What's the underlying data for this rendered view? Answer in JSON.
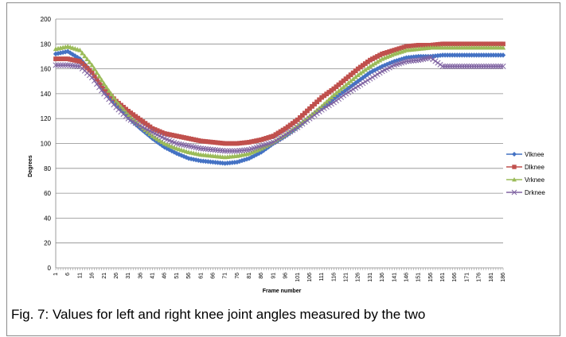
{
  "chart_data": {
    "type": "line",
    "title": "",
    "xlabel": "Frame number",
    "ylabel": "Degrees",
    "ylim": [
      0,
      200
    ],
    "yticks": [
      0,
      20,
      40,
      60,
      80,
      100,
      120,
      140,
      160,
      180,
      200
    ],
    "grid": "horizontal",
    "legend_position": "right",
    "x": [
      1,
      6,
      11,
      16,
      21,
      26,
      31,
      36,
      41,
      46,
      51,
      56,
      61,
      66,
      71,
      76,
      81,
      86,
      91,
      96,
      101,
      106,
      111,
      116,
      121,
      126,
      131,
      136,
      141,
      146,
      151,
      156,
      161,
      166,
      171,
      176,
      181,
      186
    ],
    "series": [
      {
        "name": "Vlknee",
        "color": "#4472c4",
        "marker": "diamond",
        "values": [
          172,
          174,
          168,
          157,
          143,
          131,
          121,
          112,
          104,
          97,
          92,
          88,
          86,
          85,
          84,
          85,
          88,
          93,
          100,
          106,
          113,
          121,
          128,
          136,
          143,
          150,
          157,
          162,
          166,
          169,
          170,
          170,
          171,
          171,
          171,
          171,
          171,
          171
        ]
      },
      {
        "name": "Dlknee",
        "color": "#c0504d",
        "marker": "square",
        "values": [
          168,
          168,
          166,
          157,
          144,
          134,
          126,
          119,
          112,
          108,
          106,
          104,
          102,
          101,
          100,
          100,
          101,
          103,
          106,
          112,
          119,
          128,
          137,
          144,
          152,
          160,
          167,
          172,
          175,
          178,
          179,
          179,
          180,
          180,
          180,
          180,
          180,
          180
        ]
      },
      {
        "name": "Vrknee",
        "color": "#9bbb59",
        "marker": "triangle",
        "values": [
          176,
          178,
          175,
          163,
          148,
          134,
          123,
          114,
          106,
          100,
          96,
          93,
          91,
          90,
          89,
          90,
          92,
          96,
          101,
          107,
          114,
          122,
          130,
          139,
          147,
          155,
          162,
          168,
          172,
          175,
          176,
          177,
          177,
          177,
          177,
          177,
          177,
          177
        ]
      },
      {
        "name": "Drknee",
        "color": "#8064a2",
        "marker": "x",
        "values": [
          163,
          163,
          162,
          153,
          140,
          129,
          120,
          114,
          109,
          104,
          100,
          98,
          96,
          95,
          94,
          94,
          95,
          98,
          101,
          107,
          113,
          120,
          127,
          133,
          140,
          146,
          152,
          158,
          163,
          166,
          167,
          169,
          162,
          162,
          162,
          162,
          162,
          162
        ]
      }
    ]
  },
  "caption": "Fig. 7: Values for left and right knee joint angles measured by the two"
}
